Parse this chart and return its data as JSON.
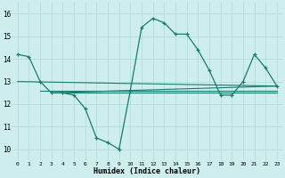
{
  "xlabel": "Humidex (Indice chaleur)",
  "background_color": "#cdeeed",
  "grid_color": "#b0ddd8",
  "line_color": "#1a7a6e",
  "xlim": [
    -0.5,
    23.5
  ],
  "ylim": [
    9.5,
    16.5
  ],
  "xticks": [
    0,
    1,
    2,
    3,
    4,
    5,
    6,
    7,
    8,
    9,
    10,
    11,
    12,
    13,
    14,
    15,
    16,
    17,
    18,
    19,
    20,
    21,
    22,
    23
  ],
  "yticks": [
    10,
    11,
    12,
    13,
    14,
    15,
    16
  ],
  "lines": [
    {
      "x": [
        0,
        1,
        2,
        3,
        4,
        5,
        6,
        7,
        8,
        9,
        10,
        11,
        12,
        13,
        14,
        15,
        16,
        17,
        18,
        19,
        20,
        21,
        22,
        23
      ],
      "y": [
        14.2,
        14.1,
        13.0,
        12.5,
        12.5,
        12.4,
        11.8,
        10.5,
        10.3,
        10.0,
        12.6,
        15.4,
        15.8,
        15.6,
        15.1,
        15.1,
        14.4,
        13.5,
        12.4,
        12.4,
        13.0,
        14.2,
        13.6,
        12.8
      ],
      "marker": true
    },
    {
      "x": [
        0,
        23
      ],
      "y": [
        13.0,
        12.8
      ],
      "marker": false
    },
    {
      "x": [
        2,
        23
      ],
      "y": [
        12.6,
        12.6
      ],
      "marker": false
    },
    {
      "x": [
        3,
        23
      ],
      "y": [
        12.5,
        12.5
      ],
      "marker": false
    },
    {
      "x": [
        3,
        23
      ],
      "y": [
        12.5,
        12.8
      ],
      "marker": false
    }
  ]
}
